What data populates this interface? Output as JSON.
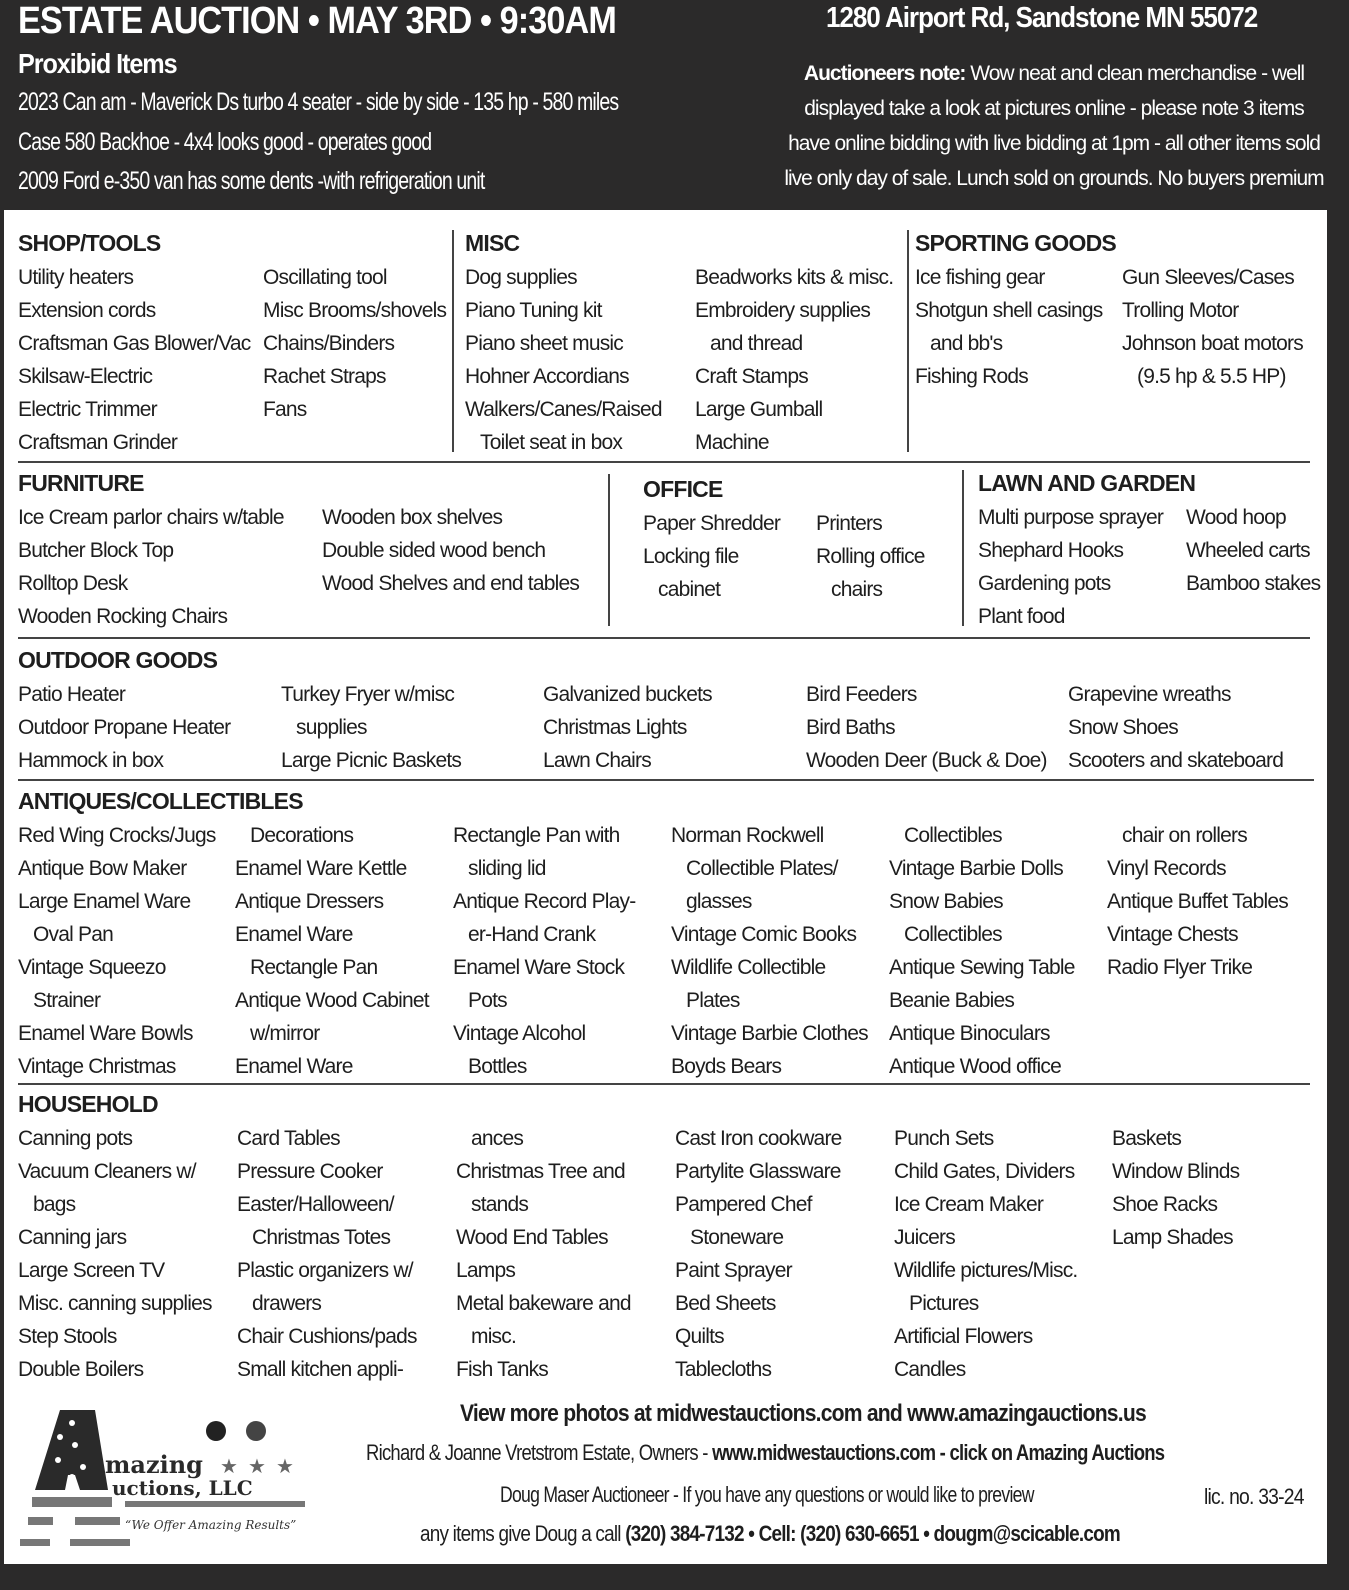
{
  "header": {
    "title": "ESTATE AUCTION • MAY 3RD • 9:30AM",
    "address": "1280 Airport Rd, Sandstone MN  55072",
    "proxibid_heading": "Proxibid Items",
    "proxibid_items": [
      "2023 Can am - Maverick Ds turbo 4 seater - side by side - 135 hp - 580 miles",
      "Case 580 Backhoe - 4x4 looks good - operates good",
      "2009 Ford e-350 van has some dents -with refrigeration unit"
    ],
    "note_label": "Auctioneers note:",
    "note_text": " Wow neat and clean merchandise - well displayed take a look at pictures online - please note 3 items have online bidding with live bidding at 1pm - all other items sold live only day of sale. Lunch sold on grounds. No buyers premium"
  },
  "sections": [
    {
      "id": "shop",
      "title": "SHOP/TOOLS",
      "columns": [
        [
          {
            "text": "Utility heaters"
          },
          {
            "text": "Extension cords"
          },
          {
            "text": "Craftsman Gas Blower/Vac"
          },
          {
            "text": "Skilsaw-Electric"
          },
          {
            "text": "Electric Trimmer"
          },
          {
            "text": "Craftsman Grinder"
          }
        ],
        [
          {
            "text": "Oscillating tool"
          },
          {
            "text": "Misc Brooms/shovels"
          },
          {
            "text": "Chains/Binders"
          },
          {
            "text": "Rachet Straps"
          },
          {
            "text": "Fans"
          }
        ]
      ]
    },
    {
      "id": "misc",
      "title": "MISC",
      "columns": [
        [
          {
            "text": "Dog supplies"
          },
          {
            "text": "Piano Tuning kit"
          },
          {
            "text": "Piano sheet music"
          },
          {
            "text": "Hohner Accordians"
          },
          {
            "text": "Walkers/Canes/Raised"
          },
          {
            "text": "Toilet seat in box",
            "cont": true
          }
        ],
        [
          {
            "text": "Beadworks kits & misc."
          },
          {
            "text": "Embroidery supplies"
          },
          {
            "text": "and thread",
            "cont": true
          },
          {
            "text": "Craft Stamps"
          },
          {
            "text": "Large Gumball"
          },
          {
            "text": "Machine"
          }
        ]
      ]
    },
    {
      "id": "sport",
      "title": "SPORTING GOODS",
      "columns": [
        [
          {
            "text": "Ice fishing gear"
          },
          {
            "text": "Shotgun shell casings"
          },
          {
            "text": "and bb's",
            "cont": true
          },
          {
            "text": "Fishing Rods"
          }
        ],
        [
          {
            "text": "Gun Sleeves/Cases"
          },
          {
            "text": "Trolling Motor"
          },
          {
            "text": "Johnson boat motors"
          },
          {
            "text": "(9.5 hp & 5.5 HP)",
            "cont": true
          }
        ]
      ]
    },
    {
      "id": "furn",
      "title": "FURNITURE",
      "columns": [
        [
          {
            "text": "Ice Cream parlor chairs w/table"
          },
          {
            "text": "Butcher Block Top"
          },
          {
            "text": "Rolltop Desk"
          },
          {
            "text": "Wooden Rocking Chairs"
          }
        ],
        [
          {
            "text": "Wooden box shelves"
          },
          {
            "text": "Double sided wood bench"
          },
          {
            "text": "Wood Shelves and end tables"
          }
        ]
      ]
    },
    {
      "id": "office",
      "title": "OFFICE",
      "columns": [
        [
          {
            "text": "Paper Shredder"
          },
          {
            "text": "Locking file"
          },
          {
            "text": "cabinet",
            "cont": true
          }
        ],
        [
          {
            "text": "Printers"
          },
          {
            "text": "Rolling office"
          },
          {
            "text": "chairs",
            "cont": true
          }
        ]
      ]
    },
    {
      "id": "lawn",
      "title": "LAWN AND GARDEN",
      "columns": [
        [
          {
            "text": "Multi purpose sprayer"
          },
          {
            "text": "Shephard Hooks"
          },
          {
            "text": "Gardening pots"
          },
          {
            "text": "Plant food"
          }
        ],
        [
          {
            "text": "Wood hoop"
          },
          {
            "text": "Wheeled carts"
          },
          {
            "text": "Bamboo stakes"
          }
        ]
      ]
    },
    {
      "id": "outdoor",
      "title": "OUTDOOR GOODS",
      "columns": [
        [
          {
            "text": "Patio Heater"
          },
          {
            "text": "Outdoor Propane Heater"
          },
          {
            "text": "Hammock in box"
          }
        ],
        [
          {
            "text": "Turkey Fryer w/misc"
          },
          {
            "text": "supplies",
            "cont": true
          },
          {
            "text": "Large Picnic Baskets"
          }
        ],
        [
          {
            "text": "Galvanized buckets"
          },
          {
            "text": "Christmas Lights"
          },
          {
            "text": "Lawn Chairs"
          }
        ],
        [
          {
            "text": "Bird Feeders"
          },
          {
            "text": "Bird Baths"
          },
          {
            "text": "Wooden Deer (Buck & Doe)"
          }
        ],
        [
          {
            "text": "Grapevine wreaths"
          },
          {
            "text": "Snow Shoes"
          },
          {
            "text": "Scooters and skateboard"
          }
        ]
      ]
    },
    {
      "id": "antiques",
      "title": "ANTIQUES/COLLECTIBLES",
      "columns": [
        [
          {
            "text": "Red Wing Crocks/Jugs"
          },
          {
            "text": "Antique Bow Maker"
          },
          {
            "text": "Large Enamel Ware"
          },
          {
            "text": "Oval Pan",
            "cont": true
          },
          {
            "text": "Vintage Squeezo"
          },
          {
            "text": "Strainer",
            "cont": true
          },
          {
            "text": "Enamel Ware Bowls"
          },
          {
            "text": "Vintage Christmas"
          }
        ],
        [
          {
            "text": "Decorations",
            "cont": true
          },
          {
            "text": "Enamel Ware Kettle"
          },
          {
            "text": "Antique Dressers"
          },
          {
            "text": "Enamel Ware"
          },
          {
            "text": "Rectangle Pan",
            "cont": true
          },
          {
            "text": "Antique Wood Cabinet"
          },
          {
            "text": "w/mirror",
            "cont": true
          },
          {
            "text": "Enamel Ware"
          }
        ],
        [
          {
            "text": "Rectangle Pan with"
          },
          {
            "text": "sliding lid",
            "cont": true
          },
          {
            "text": "Antique Record Play-"
          },
          {
            "text": "er-Hand Crank",
            "cont": true
          },
          {
            "text": "Enamel Ware Stock"
          },
          {
            "text": "Pots",
            "cont": true
          },
          {
            "text": "Vintage Alcohol"
          },
          {
            "text": "Bottles",
            "cont": true
          }
        ],
        [
          {
            "text": "Norman Rockwell"
          },
          {
            "text": "Collectible Plates/",
            "cont": true
          },
          {
            "text": "glasses",
            "cont": true
          },
          {
            "text": "Vintage Comic Books"
          },
          {
            "text": "Wildlife Collectible"
          },
          {
            "text": "Plates",
            "cont": true
          },
          {
            "text": "Vintage Barbie Clothes"
          },
          {
            "text": "Boyds Bears"
          }
        ],
        [
          {
            "text": "Collectibles",
            "cont": true
          },
          {
            "text": "Vintage Barbie Dolls"
          },
          {
            "text": "Snow Babies"
          },
          {
            "text": "Collectibles",
            "cont": true
          },
          {
            "text": "Antique Sewing Table"
          },
          {
            "text": "Beanie Babies"
          },
          {
            "text": "Antique Binoculars"
          },
          {
            "text": "Antique Wood office"
          }
        ],
        [
          {
            "text": "chair on rollers",
            "cont": true
          },
          {
            "text": "Vinyl Records"
          },
          {
            "text": "Antique Buffet Tables"
          },
          {
            "text": "Vintage Chests"
          },
          {
            "text": "Radio Flyer Trike"
          }
        ]
      ]
    },
    {
      "id": "household",
      "title": "HOUSEHOLD",
      "columns": [
        [
          {
            "text": "Canning pots"
          },
          {
            "text": "Vacuum Cleaners w/"
          },
          {
            "text": "bags",
            "cont": true
          },
          {
            "text": "Canning jars"
          },
          {
            "text": "Large Screen TV"
          },
          {
            "text": "Misc. canning supplies"
          },
          {
            "text": "Step Stools"
          },
          {
            "text": "Double Boilers"
          }
        ],
        [
          {
            "text": "Card Tables"
          },
          {
            "text": "Pressure Cooker"
          },
          {
            "text": "Easter/Halloween/"
          },
          {
            "text": "Christmas Totes",
            "cont": true
          },
          {
            "text": "Plastic organizers w/"
          },
          {
            "text": "drawers",
            "cont": true
          },
          {
            "text": "Chair Cushions/pads"
          },
          {
            "text": "Small kitchen appli-"
          }
        ],
        [
          {
            "text": "ances",
            "cont": true
          },
          {
            "text": "Christmas Tree and"
          },
          {
            "text": "stands",
            "cont": true
          },
          {
            "text": "Wood End Tables"
          },
          {
            "text": "Lamps"
          },
          {
            "text": "Metal bakeware and"
          },
          {
            "text": "misc.",
            "cont": true
          },
          {
            "text": "Fish Tanks"
          }
        ],
        [
          {
            "text": "Cast Iron cookware"
          },
          {
            "text": "Partylite Glassware"
          },
          {
            "text": "Pampered Chef"
          },
          {
            "text": "Stoneware",
            "cont": true
          },
          {
            "text": "Paint Sprayer"
          },
          {
            "text": "Bed Sheets"
          },
          {
            "text": "Quilts"
          },
          {
            "text": "Tablecloths"
          }
        ],
        [
          {
            "text": "Punch Sets"
          },
          {
            "text": "Child Gates, Dividers"
          },
          {
            "text": "Ice Cream Maker"
          },
          {
            "text": "Juicers"
          },
          {
            "text": "Wildlife pictures/Misc."
          },
          {
            "text": "Pictures",
            "cont": true
          },
          {
            "text": "Artificial Flowers"
          },
          {
            "text": "Candles"
          }
        ],
        [
          {
            "text": "Baskets"
          },
          {
            "text": "Window Blinds"
          },
          {
            "text": "Shoe Racks"
          },
          {
            "text": "Lamp Shades"
          }
        ]
      ]
    }
  ],
  "footer": {
    "photos": "View more photos at midwestauctions.com and  www.amazingauctions.us",
    "owners": "Richard & Joanne Vretstrom Estate,  Owners  - ",
    "owners_link": "www.midwestauctions.com - click on Amazing Auctions",
    "auctioneer": "Doug Maser Auctioneer - If you have any questions or would like to preview",
    "license": "lic. no. 33-24",
    "contact_prefix": "any items give Doug a call ",
    "contact": "(320) 384-7132  •  Cell: (320) 630-6651  •  dougm@scicable.com"
  },
  "logo": {
    "line1": "mazing",
    "line2": "uctions, LLC",
    "tagline": "“We Offer Amazing Results”"
  }
}
